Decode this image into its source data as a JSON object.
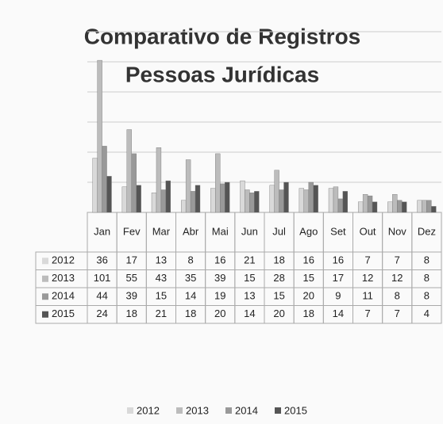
{
  "chart_data": {
    "type": "bar",
    "title": "Comparativo de Registros",
    "subtitle": "Pessoas Jurídicas",
    "categories": [
      "Jan",
      "Fev",
      "Mar",
      "Abr",
      "Mai",
      "Jun",
      "Jul",
      "Ago",
      "Set",
      "Out",
      "Nov",
      "Dez"
    ],
    "series": [
      {
        "name": "2012",
        "color": "#d9d9d9",
        "values": [
          36,
          17,
          13,
          8,
          16,
          21,
          18,
          16,
          16,
          7,
          7,
          8
        ]
      },
      {
        "name": "2013",
        "color": "#bcbcbc",
        "values": [
          101,
          55,
          43,
          35,
          39,
          15,
          28,
          15,
          17,
          12,
          12,
          8
        ]
      },
      {
        "name": "2014",
        "color": "#999999",
        "values": [
          44,
          39,
          15,
          14,
          19,
          13,
          15,
          20,
          9,
          11,
          8,
          8
        ]
      },
      {
        "name": "2015",
        "color": "#555555",
        "values": [
          24,
          18,
          21,
          18,
          20,
          14,
          20,
          18,
          14,
          7,
          7,
          4
        ]
      }
    ],
    "ylim": [
      0,
      120
    ],
    "yticks": [
      0,
      20,
      40,
      60,
      80,
      100,
      120
    ],
    "grid": true,
    "legend": "bottom"
  }
}
